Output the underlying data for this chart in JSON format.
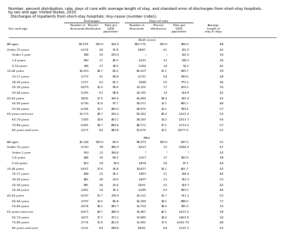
{
  "title_line1": "Number, percent distribution, rate, days of care with average length of stay, and standard error of discharges from short-stay hospitals,",
  "title_line2": "by sex and age: United States, 2010",
  "subtitle": "  Discharges of inpatients from short-stay hospitals: Any-cause (number (rate)):",
  "group1_label": "Discharges",
  "group2_label": "Days of care",
  "col_header_row_label": "Sex and age",
  "col_headers": [
    "Number in\nthousands",
    "Percent\ndistribution",
    "Rate per\n1,000\npopulation",
    "Number in\nthousands",
    "Percent\ndistribution",
    "Rate per\n1,000\npopulation",
    "Average\nlength of\nstay in days"
  ],
  "both_sexes_label": "Both sexes",
  "male_label": "Male",
  "rows_both": [
    [
      "All ages",
      "99,979",
      "100.0",
      "324.0",
      "283,774",
      "100.0",
      "384.0",
      "4.8"
    ],
    [
      "Under 15 years",
      "5,374",
      "4.4",
      "31.8",
      "8,887",
      "4.1",
      "341.0",
      "4.5"
    ],
    [
      "  Under 1 year",
      "948",
      "1.0",
      "235.0",
      "*",
      "*",
      "341.0",
      "3.4"
    ],
    [
      "  1-4 years",
      "582",
      "1.7",
      "46.0",
      "2,321",
      "1.3",
      "138.1",
      "3.6"
    ],
    [
      "  5-14 years",
      "746",
      "1.7",
      "18.0",
      "2,164",
      "1.4",
      "54.2",
      "4.2"
    ],
    [
      "15-44 years",
      "16,521",
      "28.7",
      "83.2",
      "86,507",
      "21.1",
      "499.7",
      "3.9"
    ],
    [
      "  15-17 years",
      "1,773",
      "4.1",
      "89.8",
      "4,720",
      "0.4",
      "399.6",
      "2.8"
    ],
    [
      "  18-24 years",
      "1,727",
      "6.2",
      "81.1",
      "5,968",
      "0.2",
      "770.3",
      "2.6"
    ],
    [
      "  25-34 years",
      "6,979",
      "11.0",
      "99.0",
      "12,102",
      "7.7",
      "229.2",
      "3.5"
    ],
    [
      "  35-44 years",
      "5,195",
      "8.1",
      "98.8",
      "14,745",
      "7.4",
      "314.9",
      "4.2"
    ],
    [
      "45-64 years",
      "9,841",
      "27.5",
      "156.4",
      "43,494",
      "28.4",
      "491.4",
      "4.2"
    ],
    [
      "  45-54 years",
      "6,736",
      "11.8",
      "97.7",
      "30,271",
      "12.1",
      "885.7",
      "4.8"
    ],
    [
      "  55-64 years",
      "6,149",
      "14.7",
      "400.0",
      "28,975",
      "16.1",
      "789.4",
      "5.7"
    ],
    [
      "65 years and over",
      "13,771",
      "38.7",
      "225.2",
      "92,182",
      "46.4",
      "1,021.2",
      "5.5"
    ],
    [
      "  65-74 years",
      "7,183",
      "14.8",
      "461.1",
      "28,183",
      "14.2",
      "1,013.7",
      "5.6"
    ],
    [
      "  75-84 years",
      "6,181",
      "18.7",
      "884.4",
      "48,173",
      "17.1",
      "1,713.5",
      "5.7"
    ],
    [
      "  85 years and over",
      "2,271",
      "8.2",
      "981.8",
      "21,676",
      "14.1",
      "8,077.9",
      "6.1"
    ]
  ],
  "rows_male": [
    [
      "All ages",
      "41,144",
      "100.0",
      "83.0",
      "96,073",
      "100.0",
      "497.0",
      "5.2"
    ],
    [
      "Under 15 years",
      "5,720",
      "7.8",
      "286.0",
      "8,221",
      "7.2",
      "1,084.0",
      "4.7"
    ],
    [
      "  Under 1 year",
      "503",
      "1.3",
      "394.6",
      "*",
      "*",
      "*",
      "3.2"
    ],
    [
      "  1-4 years",
      "448",
      "1.6",
      "68.2",
      "1,167",
      "1.7",
      "383.9",
      "3.8"
    ],
    [
      "  5-14 years",
      "813",
      "2.9",
      "19.4",
      "1,874",
      "0.4",
      "87.1",
      "4.4"
    ],
    [
      "15-44 years",
      "6,021",
      "17.8",
      "35.8",
      "14,827",
      "16.1",
      "461.7",
      "4.3"
    ],
    [
      "  15-17 years",
      "648",
      "1.5",
      "36.1",
      "1,867",
      "1.1",
      "194.4",
      "4.6"
    ],
    [
      "  18-24 years",
      "481",
      "2.8",
      "23.6",
      "1,837",
      "2.1",
      "162.3",
      "5.2"
    ],
    [
      "  25-34 years",
      "981",
      "2.6",
      "23.4",
      "2,832",
      "2.1",
      "163.7",
      "4.2"
    ],
    [
      "  35-44 years",
      "1,281",
      "7.4",
      "35.3",
      "6,185",
      "6.3",
      "383.5",
      "4.6"
    ],
    [
      "45-64 years",
      "6,597",
      "21.7",
      "178.9",
      "26,121",
      "22.7",
      "611.2",
      "5.2"
    ],
    [
      "  45-54 years",
      "3,797",
      "12.6",
      "86.8",
      "16,189",
      "18.1",
      "888.5",
      "7.7"
    ],
    [
      "  55-64 years",
      "2,574",
      "18.1",
      "281.7",
      "12,754",
      "18.4",
      "781.0",
      "3.3"
    ],
    [
      "65 years and over",
      "6,977",
      "44.7",
      "388.9",
      "16,487",
      "46.1",
      "1,021.5",
      "3.8"
    ],
    [
      "  65-74 years",
      "3,471",
      "17.7",
      "371.1",
      "10,840",
      "18.4",
      "1,463.6",
      "3.4"
    ],
    [
      "  75-84 years",
      "2,774",
      "11.8",
      "461.0",
      "12,281",
      "17.5",
      "2,242.79",
      "4.8"
    ],
    [
      "  85 years and over",
      "1,131",
      "8.2",
      "958.6",
      "8,692",
      "8.4",
      "1,197.2",
      "5.5"
    ]
  ],
  "bg_color": "#ffffff",
  "text_color": "#000000",
  "fontsize_title": 3.8,
  "fontsize_header": 3.2,
  "fontsize_data": 3.0
}
